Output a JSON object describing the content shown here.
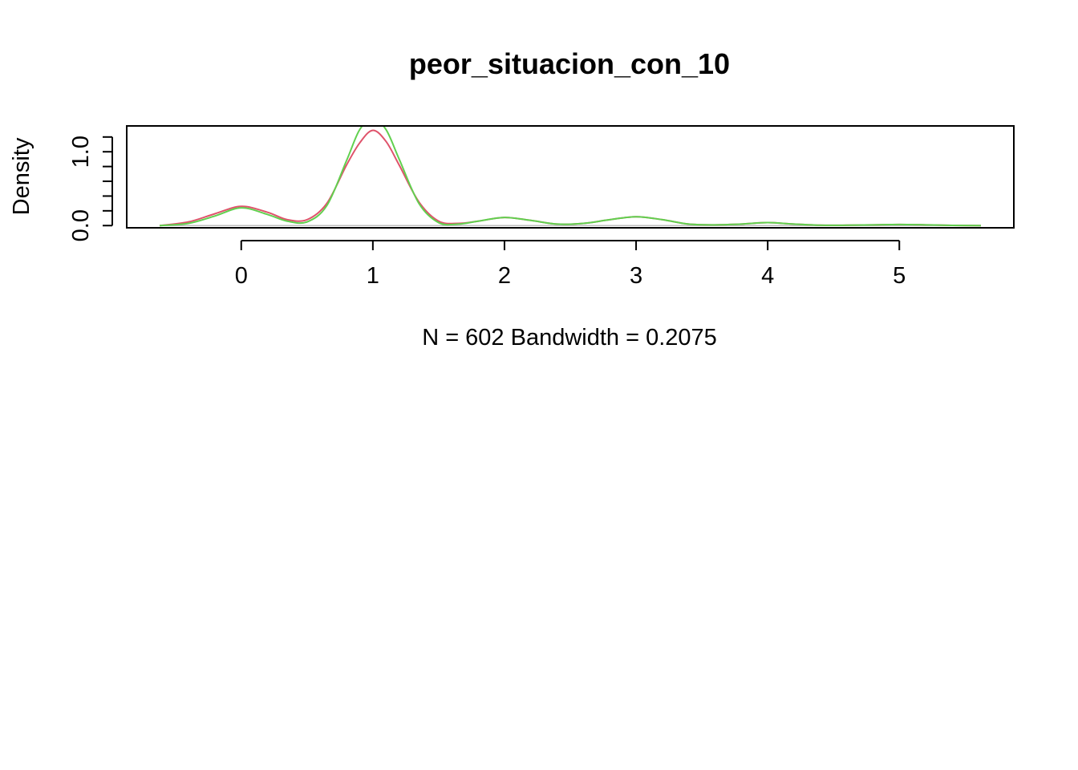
{
  "chart_data": {
    "type": "line",
    "title": "peor_situacion_con_10",
    "xlabel": "N = 602   Bandwidth = 0.2075",
    "ylabel": "Density",
    "xlim": [
      -0.87,
      5.87
    ],
    "ylim": [
      -0.03,
      1.35
    ],
    "x_ticks": [
      0,
      1,
      2,
      3,
      4,
      5
    ],
    "x_tick_labels": [
      "0",
      "1",
      "2",
      "3",
      "4",
      "5"
    ],
    "y_ticks_labeled": [
      0.0,
      1.0
    ],
    "y_tick_labels": [
      "0.0",
      "1.0"
    ],
    "y_ticks_minor": [
      0.2,
      0.4,
      0.6,
      0.8,
      1.2
    ],
    "baseline": 0,
    "colors": {
      "series_1": "#DF536B",
      "series_2": "#61D04F",
      "baseline": "#BEBEBE",
      "axis": "#000000"
    },
    "series": [
      {
        "color": "#DF536B",
        "x": [
          -0.62,
          -0.4,
          -0.2,
          0.0,
          0.2,
          0.35,
          0.5,
          0.65,
          0.8,
          0.9,
          1.0,
          1.1,
          1.2,
          1.35,
          1.5,
          1.65,
          1.8,
          2.0,
          2.2,
          2.4,
          2.6,
          2.8,
          3.0,
          3.2,
          3.4,
          3.6,
          3.8,
          4.0,
          4.2,
          4.4,
          4.6,
          4.8,
          5.0,
          5.2,
          5.4,
          5.62
        ],
        "y": [
          0.0,
          0.05,
          0.16,
          0.26,
          0.18,
          0.08,
          0.08,
          0.3,
          0.82,
          1.12,
          1.29,
          1.14,
          0.82,
          0.32,
          0.06,
          0.03,
          0.06,
          0.11,
          0.07,
          0.02,
          0.03,
          0.08,
          0.12,
          0.08,
          0.02,
          0.01,
          0.02,
          0.04,
          0.02,
          0.005,
          0.005,
          0.01,
          0.015,
          0.01,
          0.003,
          0.0
        ]
      },
      {
        "color": "#61D04F",
        "x": [
          -0.62,
          -0.4,
          -0.2,
          0.0,
          0.2,
          0.35,
          0.5,
          0.65,
          0.8,
          0.9,
          1.0,
          1.1,
          1.2,
          1.35,
          1.5,
          1.65,
          1.8,
          2.0,
          2.2,
          2.4,
          2.6,
          2.8,
          3.0,
          3.2,
          3.4,
          3.6,
          3.8,
          4.0,
          4.2,
          4.4,
          4.6,
          4.8,
          5.0,
          5.2,
          5.4,
          5.62
        ],
        "y": [
          0.0,
          0.03,
          0.13,
          0.24,
          0.15,
          0.06,
          0.05,
          0.27,
          0.88,
          1.3,
          1.45,
          1.3,
          0.9,
          0.3,
          0.04,
          0.02,
          0.06,
          0.11,
          0.07,
          0.02,
          0.03,
          0.08,
          0.12,
          0.08,
          0.02,
          0.01,
          0.02,
          0.04,
          0.02,
          0.005,
          0.005,
          0.01,
          0.015,
          0.01,
          0.003,
          0.0
        ]
      }
    ]
  }
}
